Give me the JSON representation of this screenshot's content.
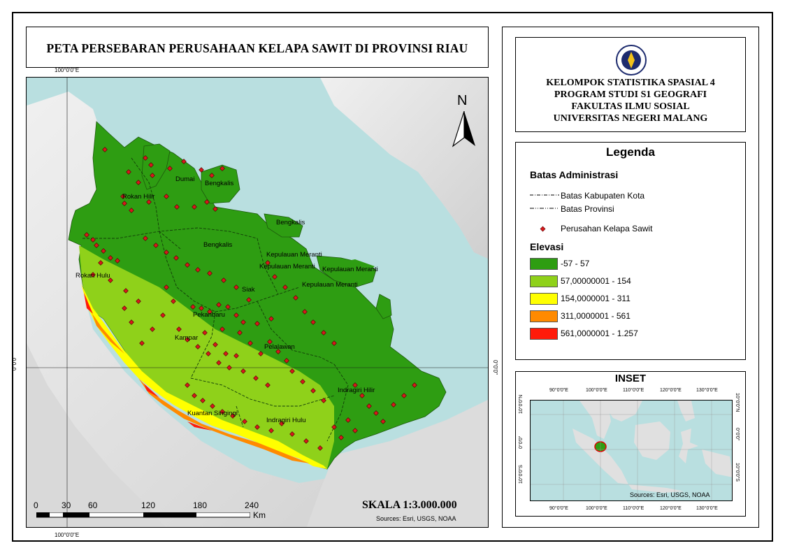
{
  "title": "PETA PERSEBARAN PERUSAHAAN KELAPA SAWIT DI PROVINSI RIAU",
  "institution": {
    "lines": [
      "KELOMPOK STATISTIKA SPASIAL 4",
      "PROGRAM STUDI S1 GEOGRAFI",
      "FAKULTAS ILMU SOSIAL",
      "UNIVERSITAS NEGERI MALANG"
    ],
    "logo_text": "UNIVERSITAS NEGERI MALANG"
  },
  "main_map": {
    "grid_labels": {
      "top": "100°0'0\"E",
      "bottom": "100°0'0\"E",
      "left": "0°0'0\"",
      "right": "0°0'0\""
    },
    "north_label": "N",
    "region_labels": [
      "Rokan Hilir",
      "Dumai",
      "Bengkalis",
      "Bengkalis",
      "Bengkalis",
      "Kepulauan Meranti",
      "Kepulauan Meranti",
      "Kepulauan Meranti",
      "Kepulauan Meranti",
      "Rokan Hulu",
      "Siak",
      "Pekanbaru",
      "Kampar",
      "Pelalawan",
      "Indragiri Hilir",
      "Kuantan Singingi",
      "Indragiri Hulu"
    ],
    "scale_text": "SKALA 1:3.000.000",
    "scalebar": {
      "ticks": [
        "0",
        "30",
        "60",
        "120",
        "180",
        "240"
      ],
      "unit": "Km"
    },
    "sources": "Sources: Esri, USGS, NOAA"
  },
  "legend": {
    "heading": "Legenda",
    "admin_heading": "Batas Administrasi",
    "admin_items": [
      "Batas Kabupaten Kota",
      "Batas Provinsi"
    ],
    "point_item": "Perusahan Kelapa Sawit",
    "point_color": "#d7191c",
    "elevation_heading": "Elevasi",
    "elevation_classes": [
      {
        "label": "-57 - 57",
        "color": "#2e9d12"
      },
      {
        "label": "57,00000001 - 154",
        "color": "#8fd11a"
      },
      {
        "label": "154,0000001 - 311",
        "color": "#ffff00"
      },
      {
        "label": "311,0000001 - 561",
        "color": "#ff8a00"
      },
      {
        "label": "561,0000001 - 1.257",
        "color": "#ff1a0a"
      }
    ]
  },
  "inset": {
    "heading": "INSET",
    "top_labels": [
      "90°0'0\"E",
      "100°0'0\"E",
      "110°0'0\"E",
      "120°0'0\"E",
      "130°0'0\"E"
    ],
    "bottom_labels": [
      "90°0'0\"E",
      "100°0'0\"E",
      "110°0'0\"E",
      "120°0'0\"E",
      "130°0'0\"E"
    ],
    "side_labels": [
      "10°0'0\"N",
      "0°0'0\"",
      "10°0'0\"S"
    ],
    "sources": "Sources: Esri, USGS, NOAA"
  },
  "colors": {
    "sea": "#b9dfe0",
    "land_hillshade": "#e2e2e2",
    "lowland": "#2e9d12"
  }
}
